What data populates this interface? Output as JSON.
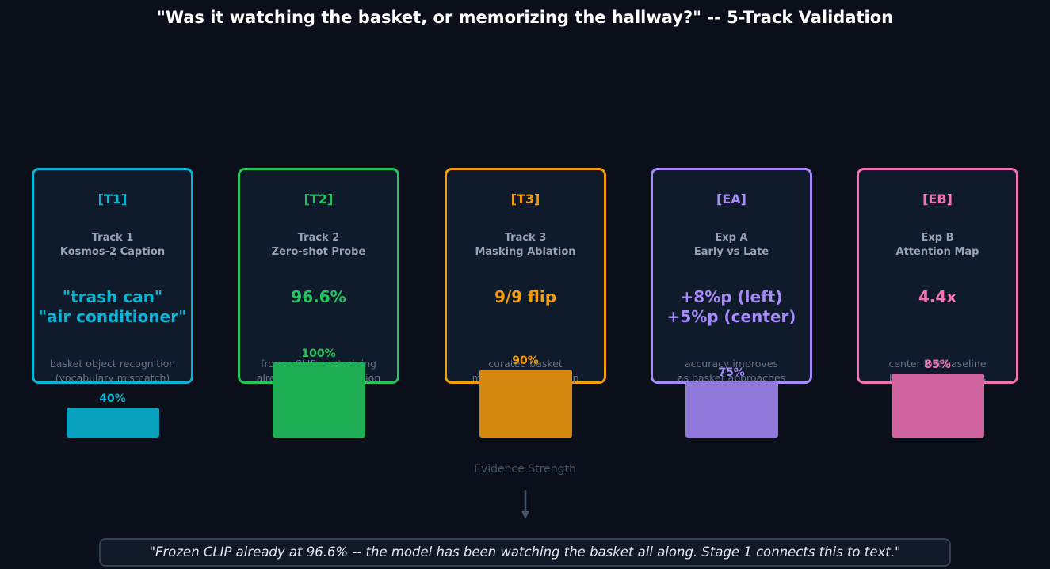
{
  "title": "\"Was it watching the basket, or memorizing the hallway?\" -- 5-Track Validation",
  "tracks": [
    {
      "tag": "[T1]",
      "subtitle": "Track 1\nKosmos-2 Caption",
      "metric": "\"trash can\"\n\"air conditioner\"",
      "desc": "basket object recognition\n(vocabulary mismatch)",
      "pct_label": "40%",
      "strength": 0.4,
      "color": "#06b6d4",
      "bar_color": "#07a0bd"
    },
    {
      "tag": "[T2]",
      "subtitle": "Track 2\nZero-shot Probe",
      "metric": "96.6%",
      "desc": "frozen CLIP, no training\nalready encodes position",
      "pct_label": "100%",
      "strength": 1.0,
      "color": "#22c55e",
      "bar_color": "#1fad55"
    },
    {
      "tag": "[T3]",
      "subtitle": "Track 3\nMasking Ablation",
      "metric": "9/9 flip",
      "desc": "curated basket\nmasking -> 100% flip",
      "pct_label": "90%",
      "strength": 0.9,
      "color": "#f59e0b",
      "bar_color": "#d4880f"
    },
    {
      "tag": "[EA]",
      "subtitle": "Exp A\nEarly vs Late",
      "metric": "+8%p (left)\n+5%p (center)",
      "desc": "accuracy improves\nas basket approaches",
      "pct_label": "75%",
      "strength": 0.75,
      "color": "#a78bfa",
      "bar_color": "#9079da"
    },
    {
      "tag": "[EB]",
      "subtitle": "Exp B\nAttention Map",
      "metric": "4.4x",
      "desc": "center lost baseline\nbasket region focus",
      "pct_label": "85%",
      "strength": 0.85,
      "color": "#f472b6",
      "bar_color": "#d0649e"
    }
  ],
  "evidence_label": "Evidence Strength",
  "quote": "\"Frozen CLIP already at 96.6% -- the model has been watching the basket all along. Stage 1 connects this to text.\""
}
